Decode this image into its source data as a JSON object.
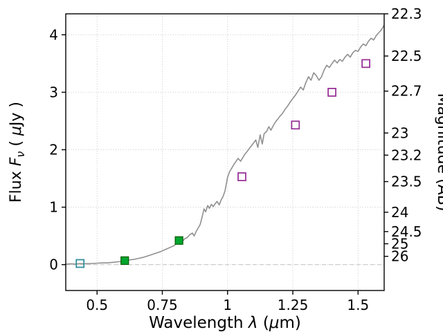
{
  "figure": {
    "background": "#ffffff"
  },
  "chart_data": {
    "type": "line",
    "title": "",
    "xlabel_segments": [
      {
        "t": "Wavelength ",
        "i": false
      },
      {
        "t": "λ",
        "i": true
      },
      {
        "t": " (",
        "i": false
      },
      {
        "t": "μ",
        "i": true
      },
      {
        "t": "m)",
        "i": false
      }
    ],
    "ylabel_segments": [
      {
        "t": "Flux ",
        "i": false
      },
      {
        "t": "F",
        "i": true
      },
      {
        "t": "ν",
        "i": true,
        "sub": true
      },
      {
        "t": " ( ",
        "i": false
      },
      {
        "t": "μ",
        "i": true
      },
      {
        "t": "Jy )",
        "i": false
      }
    ],
    "right_axis_label_segments": [
      {
        "t": "Magnitude (AB)",
        "i": false
      }
    ],
    "xlim": [
      0.38,
      1.6
    ],
    "ylim_flux": [
      -0.45,
      4.365
    ],
    "x_ticks": [
      0.5,
      0.75,
      1.0,
      1.25,
      1.5
    ],
    "x_tick_labels": [
      "0.5",
      "0.75",
      "1",
      "1.25",
      "1.5"
    ],
    "y_ticks": [
      0,
      1,
      2,
      3,
      4
    ],
    "y_tick_labels": [
      "0",
      "1",
      "2",
      "3",
      "4"
    ],
    "mag_ticks": [
      22.3,
      22.5,
      22.7,
      23,
      23.2,
      23.5,
      24,
      24.5,
      25,
      26
    ],
    "mag_tick_labels": [
      "22.3",
      "22.5",
      "22.7",
      "23",
      "23.2",
      "23.5",
      "24",
      "24.5",
      "25",
      "26"
    ],
    "mag_zeropoint": 23.9,
    "grid": true,
    "zero_line": true,
    "colors": {
      "spectrum": "#8f8f8f",
      "grid": "#cfcfcf",
      "zero_line": "#c4c4c4",
      "spine": "#000000",
      "error_bar": "#111111"
    },
    "spectrum": {
      "x": [
        0.38,
        0.4,
        0.42,
        0.435,
        0.45,
        0.465,
        0.48,
        0.5,
        0.52,
        0.54,
        0.56,
        0.58,
        0.6,
        0.62,
        0.64,
        0.66,
        0.68,
        0.7,
        0.72,
        0.74,
        0.76,
        0.78,
        0.795,
        0.81,
        0.82,
        0.828,
        0.836,
        0.845,
        0.855,
        0.865,
        0.872,
        0.88,
        0.888,
        0.895,
        0.902,
        0.91,
        0.916,
        0.924,
        0.93,
        0.938,
        0.945,
        0.952,
        0.96,
        0.968,
        0.975,
        0.982,
        0.99,
        1.0,
        1.008,
        1.016,
        1.025,
        1.033,
        1.04,
        1.05,
        1.058,
        1.066,
        1.075,
        1.083,
        1.09,
        1.1,
        1.108,
        1.116,
        1.125,
        1.133,
        1.14,
        1.15,
        1.158,
        1.166,
        1.175,
        1.183,
        1.19,
        1.2,
        1.21,
        1.22,
        1.23,
        1.24,
        1.25,
        1.26,
        1.27,
        1.28,
        1.29,
        1.3,
        1.31,
        1.32,
        1.33,
        1.34,
        1.35,
        1.36,
        1.37,
        1.38,
        1.39,
        1.4,
        1.41,
        1.42,
        1.43,
        1.44,
        1.45,
        1.46,
        1.47,
        1.48,
        1.49,
        1.5,
        1.51,
        1.52,
        1.53,
        1.54,
        1.55,
        1.56,
        1.57,
        1.58,
        1.59,
        1.6
      ],
      "y": [
        0.01,
        0.015,
        0.01,
        0.02,
        0.015,
        0.02,
        0.02,
        0.025,
        0.03,
        0.03,
        0.04,
        0.05,
        0.06,
        0.08,
        0.09,
        0.11,
        0.13,
        0.16,
        0.19,
        0.22,
        0.26,
        0.3,
        0.33,
        0.4,
        0.46,
        0.41,
        0.45,
        0.47,
        0.52,
        0.55,
        0.5,
        0.58,
        0.64,
        0.7,
        0.82,
        0.97,
        0.92,
        1.03,
        0.98,
        1.05,
        1.01,
        1.06,
        1.1,
        1.04,
        1.12,
        1.18,
        1.28,
        1.52,
        1.62,
        1.68,
        1.75,
        1.8,
        1.85,
        1.8,
        1.86,
        1.92,
        1.97,
        2.02,
        2.06,
        2.12,
        2.17,
        2.04,
        2.26,
        2.1,
        2.28,
        2.32,
        2.4,
        2.34,
        2.42,
        2.48,
        2.52,
        2.58,
        2.63,
        2.7,
        2.76,
        2.83,
        2.89,
        2.95,
        3.02,
        3.09,
        3.04,
        3.17,
        3.27,
        3.21,
        3.34,
        3.29,
        3.21,
        3.27,
        3.39,
        3.47,
        3.43,
        3.5,
        3.56,
        3.51,
        3.57,
        3.54,
        3.61,
        3.66,
        3.61,
        3.69,
        3.73,
        3.71,
        3.79,
        3.84,
        3.81,
        3.89,
        3.94,
        3.91,
        3.99,
        4.04,
        4.09,
        4.17
      ]
    },
    "photometry": [
      {
        "x": 0.435,
        "y": 0.02,
        "type": "open",
        "color": "#2f8f9d"
      },
      {
        "x": 0.606,
        "y": 0.07,
        "yerr": 0.05,
        "type": "filled",
        "color": "#00a62e",
        "edge": "#035903"
      },
      {
        "x": 0.814,
        "y": 0.42,
        "yerr": 0.05,
        "type": "filled",
        "color": "#00a62e",
        "edge": "#035903"
      },
      {
        "x": 1.055,
        "y": 1.53,
        "type": "open",
        "color": "#993399"
      },
      {
        "x": 1.26,
        "y": 2.43,
        "type": "open",
        "color": "#993399"
      },
      {
        "x": 1.4,
        "y": 3.0,
        "type": "open",
        "color": "#993399"
      },
      {
        "x": 1.53,
        "y": 3.5,
        "type": "open",
        "color": "#993399"
      }
    ]
  }
}
